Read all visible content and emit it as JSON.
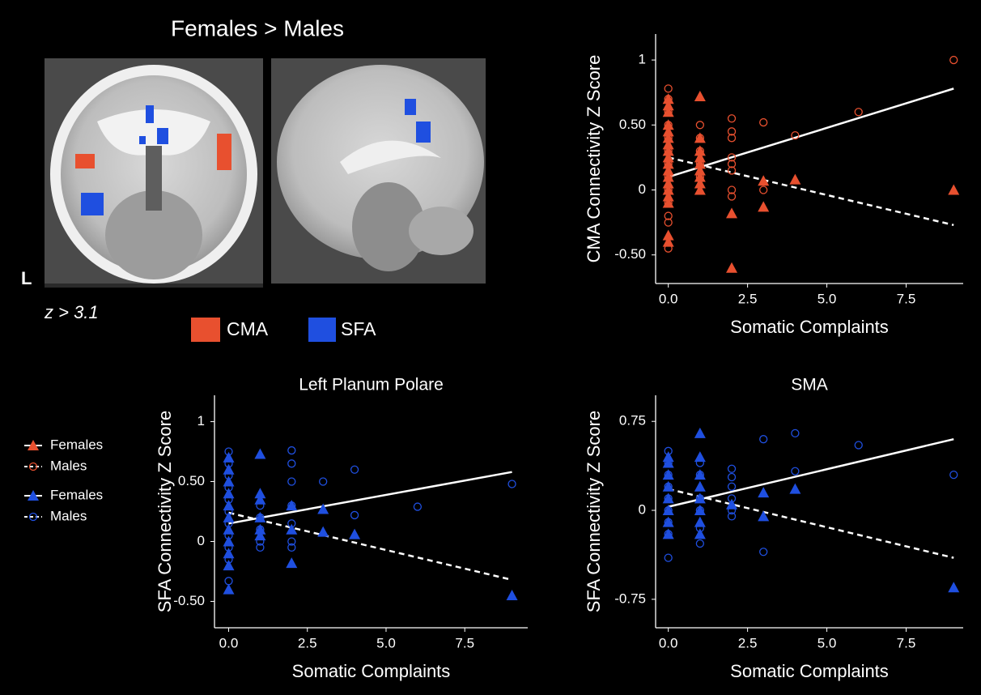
{
  "figure": {
    "title": "Females > Males",
    "side_label": "L",
    "threshold_label": "z > 3.1",
    "regions": [
      "CMA",
      "SFA"
    ]
  },
  "chart_data": [
    {
      "type": "scatter",
      "x_label": "Somatic Complaints",
      "y_label": "CMA Connectivity Z Score",
      "xlim": [
        -0.4,
        9.3
      ],
      "ylim": [
        -0.72,
        1.2
      ],
      "xticks": [
        {
          "value": 0,
          "label": "0.0"
        },
        {
          "value": 2.5,
          "label": "2.5"
        },
        {
          "value": 5,
          "label": "5.0"
        },
        {
          "value": 7.5,
          "label": "7.5"
        }
      ],
      "yticks": [
        {
          "value": -0.5,
          "label": "-0.50"
        },
        0,
        {
          "value": 0.5,
          "label": "0.50"
        },
        1
      ],
      "series": [
        {
          "name": "Females",
          "color": "#e8502f",
          "marker": "triangle",
          "x": [
            0,
            0,
            0,
            0,
            0,
            0,
            0,
            0,
            0,
            0,
            0,
            0,
            0,
            0,
            0,
            0,
            0,
            0,
            1,
            1,
            1,
            1,
            1,
            1,
            1,
            1,
            1,
            2,
            2,
            3,
            3,
            4,
            9
          ],
          "values": [
            0.7,
            0.65,
            0.6,
            0.5,
            0.45,
            0.4,
            0.35,
            0.3,
            0.25,
            0.2,
            0.15,
            0.1,
            0.05,
            0,
            -0.05,
            -0.1,
            -0.35,
            -0.4,
            0.72,
            0.4,
            0.3,
            0.25,
            0.2,
            0.15,
            0.1,
            0.05,
            0,
            -0.18,
            -0.6,
            0.07,
            -0.13,
            0.08,
            0
          ],
          "fit": {
            "x": [
              0,
              9
            ],
            "values": [
              0.1,
              0.78
            ],
            "dashed": false
          }
        },
        {
          "name": "Males",
          "color": "#e8502f",
          "marker": "circle",
          "x": [
            0,
            0,
            0,
            0,
            0,
            0,
            0,
            0,
            0,
            0,
            0,
            0,
            0,
            1,
            1,
            1,
            1,
            1,
            2,
            2,
            2,
            2,
            2,
            2,
            2,
            2,
            3,
            3,
            4,
            6,
            9
          ],
          "values": [
            0.78,
            0.7,
            0.6,
            0.5,
            0.4,
            0.3,
            0.2,
            0.1,
            0,
            -0.1,
            -0.2,
            -0.25,
            -0.45,
            0.5,
            0.4,
            0.3,
            0.2,
            0.1,
            0.55,
            0.45,
            0.4,
            0.25,
            0.2,
            0.15,
            0,
            -0.05,
            0.52,
            0,
            0.42,
            0.6,
            1.0
          ],
          "fit": {
            "x": [
              0,
              9
            ],
            "values": [
              0.25,
              -0.27
            ],
            "dashed": true
          }
        }
      ]
    },
    {
      "type": "scatter",
      "title": "Left Planum Polare",
      "x_label": "Somatic Complaints",
      "y_label": "SFA Connectivity Z Score",
      "xlim": [
        -0.45,
        9.5
      ],
      "ylim": [
        -0.72,
        1.22
      ],
      "xticks": [
        {
          "value": 0,
          "label": "0.0"
        },
        {
          "value": 2.5,
          "label": "2.5"
        },
        {
          "value": 5,
          "label": "5.0"
        },
        {
          "value": 7.5,
          "label": "7.5"
        }
      ],
      "yticks": [
        {
          "value": -0.5,
          "label": "-0.50"
        },
        0,
        {
          "value": 0.5,
          "label": "0.50"
        },
        1
      ],
      "series": [
        {
          "name": "Females",
          "color": "#1f4fe0",
          "marker": "triangle",
          "x": [
            0,
            0,
            0,
            0,
            0,
            0,
            0,
            0,
            0,
            0,
            0,
            1,
            1,
            1,
            1,
            1,
            1,
            2,
            2,
            2,
            3,
            3,
            4,
            9
          ],
          "values": [
            0.7,
            0.6,
            0.5,
            0.4,
            0.3,
            0.2,
            0.1,
            0,
            -0.1,
            -0.2,
            -0.4,
            0.73,
            0.4,
            0.35,
            0.2,
            0.1,
            0.05,
            0.3,
            0.1,
            -0.18,
            0.27,
            0.08,
            0.06,
            -0.45
          ],
          "fit": {
            "x": [
              0,
              9
            ],
            "values": [
              0.15,
              0.58
            ],
            "dashed": false
          }
        },
        {
          "name": "Males",
          "color": "#1f4fe0",
          "marker": "circle",
          "x": [
            0,
            0,
            0,
            0,
            0,
            0,
            0,
            0,
            0,
            0,
            0,
            1,
            1,
            1,
            1,
            1,
            2,
            2,
            2,
            2,
            2,
            2,
            2,
            3,
            4,
            4,
            6,
            9
          ],
          "values": [
            0.75,
            0.65,
            0.55,
            0.45,
            0.35,
            0.25,
            0.15,
            0.05,
            -0.05,
            -0.15,
            -0.33,
            0.3,
            0.2,
            0.1,
            0,
            -0.05,
            0.76,
            0.65,
            0.5,
            0.3,
            0.15,
            0,
            -0.05,
            0.5,
            0.6,
            0.22,
            0.29,
            0.48
          ],
          "fit": {
            "x": [
              0,
              9
            ],
            "values": [
              0.24,
              -0.32
            ],
            "dashed": true
          }
        }
      ]
    },
    {
      "type": "scatter",
      "title": "SMA",
      "x_label": "Somatic Complaints",
      "y_label": "SFA Connectivity Z Score",
      "xlim": [
        -0.4,
        9.3
      ],
      "ylim": [
        -0.99,
        0.97
      ],
      "xticks": [
        {
          "value": 0,
          "label": "0.0"
        },
        {
          "value": 2.5,
          "label": "2.5"
        },
        {
          "value": 5,
          "label": "5.0"
        },
        {
          "value": 7.5,
          "label": "7.5"
        }
      ],
      "yticks": [
        -0.75,
        0,
        0.75
      ],
      "series": [
        {
          "name": "Females",
          "color": "#1f4fe0",
          "marker": "triangle",
          "x": [
            0,
            0,
            0,
            0,
            0,
            0,
            0,
            0,
            1,
            1,
            1,
            1,
            1,
            1,
            1,
            1,
            2,
            3,
            3,
            4,
            9
          ],
          "values": [
            0.45,
            0.4,
            0.3,
            0.2,
            0.1,
            0,
            -0.1,
            -0.2,
            0.65,
            0.45,
            0.3,
            0.2,
            0.1,
            0,
            -0.1,
            -0.2,
            0.05,
            0.15,
            -0.05,
            0.18,
            -0.65
          ],
          "fit": {
            "x": [
              0,
              9
            ],
            "values": [
              0.03,
              0.6
            ],
            "dashed": false
          }
        },
        {
          "name": "Males",
          "color": "#1f4fe0",
          "marker": "circle",
          "x": [
            0,
            0,
            0,
            0,
            0,
            0,
            0,
            0,
            0,
            1,
            1,
            1,
            1,
            1,
            1,
            2,
            2,
            2,
            2,
            2,
            2,
            3,
            3,
            4,
            4,
            6,
            9
          ],
          "values": [
            0.5,
            0.4,
            0.3,
            0.2,
            0.1,
            0,
            -0.1,
            -0.2,
            -0.4,
            0.4,
            0.3,
            0.1,
            0,
            -0.15,
            -0.28,
            0.35,
            0.28,
            0.2,
            0.1,
            0,
            -0.05,
            0.6,
            -0.35,
            0.65,
            0.33,
            0.55,
            0.3
          ],
          "fit": {
            "x": [
              0,
              9
            ],
            "values": [
              0.18,
              -0.4
            ],
            "dashed": true
          }
        }
      ]
    }
  ]
}
